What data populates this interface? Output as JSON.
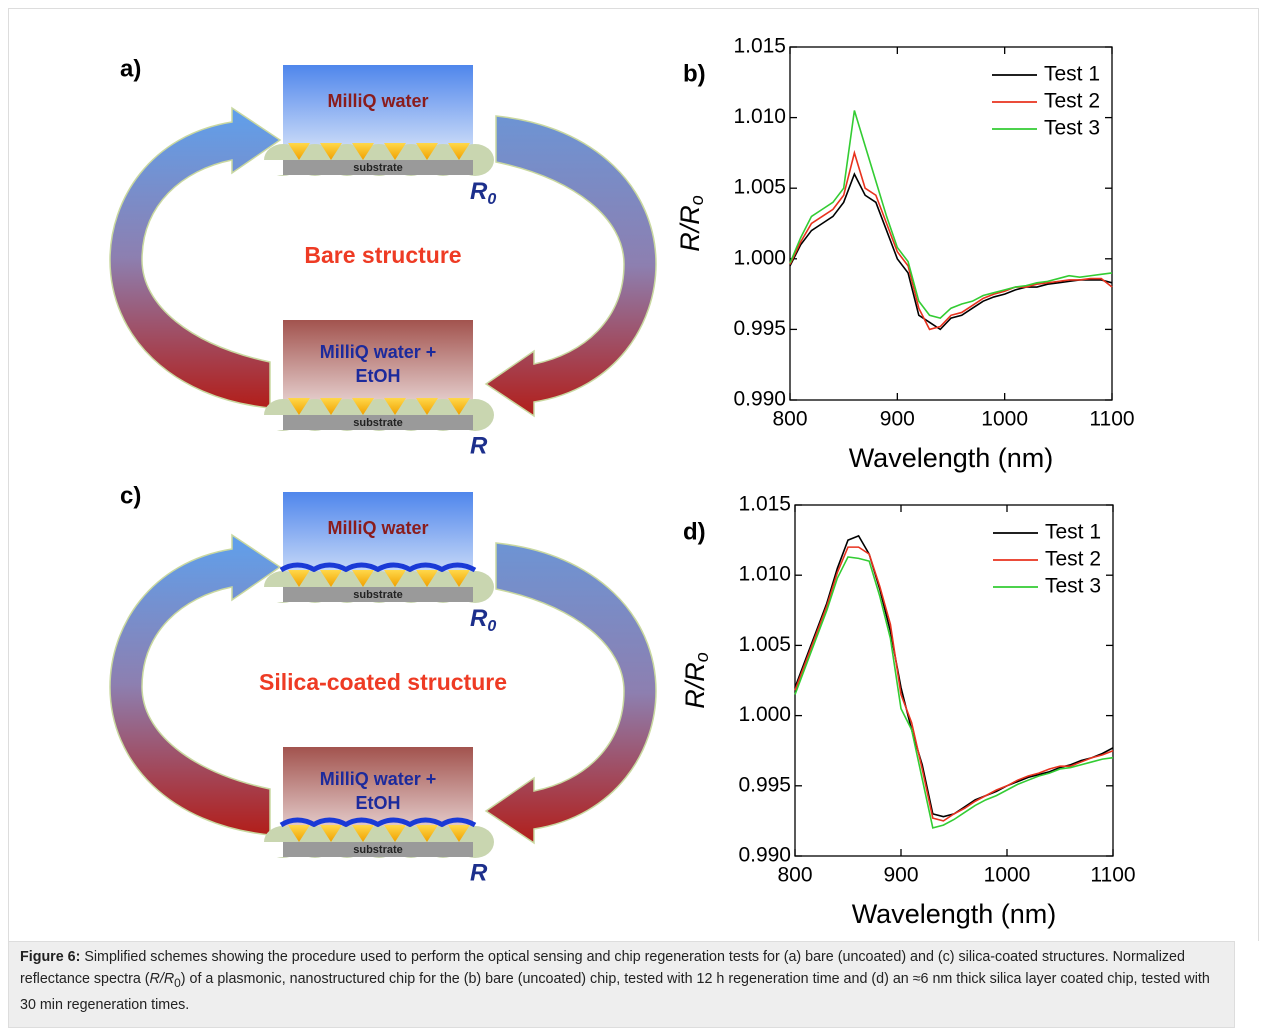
{
  "schemes": [
    {
      "panel_label": "a)",
      "top_box": {
        "text": "MilliQ water",
        "substrate": "substrate"
      },
      "top_symbol": "R",
      "top_symbol_sub": "0",
      "center_text": "Bare structure",
      "bottom_box": {
        "lines": [
          "MilliQ water +",
          "EtOH"
        ],
        "substrate": "substrate"
      },
      "bottom_symbol": "R",
      "silica_layer": false
    },
    {
      "panel_label": "c)",
      "top_box": {
        "text": "MilliQ water",
        "substrate": "substrate"
      },
      "top_symbol": "R",
      "top_symbol_sub": "0",
      "center_text": "Silica-coated structure",
      "bottom_box": {
        "lines": [
          "MilliQ water +",
          "EtOH"
        ],
        "substrate": "substrate"
      },
      "bottom_symbol": "R",
      "silica_layer": true
    }
  ],
  "chart_data": [
    {
      "type": "line",
      "panel_label": "b)",
      "xlabel": "Wavelength (nm)",
      "ylabel": "R/R",
      "ylabel_subscript": "o",
      "legend": "upper right",
      "x": [
        800,
        810,
        820,
        830,
        840,
        850,
        860,
        870,
        880,
        890,
        900,
        910,
        920,
        930,
        940,
        950,
        960,
        970,
        980,
        990,
        1000,
        1010,
        1020,
        1030,
        1040,
        1050,
        1060,
        1070,
        1080,
        1090,
        1100
      ],
      "xlim": [
        800,
        1100
      ],
      "xticks": [
        800,
        900,
        1000,
        1100
      ],
      "ylim": [
        0.99,
        1.015
      ],
      "yticks": [
        {
          "value": 0.99,
          "label": "0.990"
        },
        0.995,
        {
          "value": 1.0,
          "label": "1.000"
        },
        1.005,
        {
          "value": 1.01,
          "label": "1.010"
        },
        1.015
      ],
      "series": [
        {
          "name": "Test 1",
          "color": "#000000",
          "values": [
            0.9995,
            1.001,
            1.002,
            1.0025,
            1.003,
            1.004,
            1.006,
            1.0045,
            1.004,
            1.002,
            1.0,
            0.999,
            0.996,
            0.9955,
            0.995,
            0.9958,
            0.996,
            0.9965,
            0.997,
            0.9973,
            0.9975,
            0.9978,
            0.998,
            0.998,
            0.9982,
            0.9983,
            0.9984,
            0.9985,
            0.9985,
            0.9985,
            0.9983
          ]
        },
        {
          "name": "Test 2",
          "color": "#e8321e",
          "values": [
            0.9996,
            1.0012,
            1.0025,
            1.003,
            1.0035,
            1.0045,
            1.0075,
            1.005,
            1.0045,
            1.0025,
            1.0005,
            0.9995,
            0.9965,
            0.995,
            0.9952,
            0.996,
            0.9962,
            0.9967,
            0.9972,
            0.9975,
            0.9977,
            0.998,
            0.998,
            0.9982,
            0.9983,
            0.9984,
            0.9985,
            0.9985,
            0.9986,
            0.9986,
            0.998
          ]
        },
        {
          "name": "Test 3",
          "color": "#33cc33",
          "values": [
            0.9997,
            1.0015,
            1.003,
            1.0035,
            1.004,
            1.005,
            1.0105,
            1.008,
            1.0055,
            1.003,
            1.0008,
            0.9998,
            0.997,
            0.996,
            0.9958,
            0.9965,
            0.9968,
            0.997,
            0.9974,
            0.9976,
            0.9978,
            0.998,
            0.9981,
            0.9983,
            0.9984,
            0.9986,
            0.9988,
            0.9987,
            0.9988,
            0.9989,
            0.999
          ]
        }
      ]
    },
    {
      "type": "line",
      "panel_label": "d)",
      "xlabel": "Wavelength (nm)",
      "ylabel": "R/R",
      "ylabel_subscript": "o",
      "legend": "upper right",
      "x": [
        800,
        810,
        820,
        830,
        840,
        850,
        860,
        870,
        880,
        890,
        900,
        910,
        920,
        930,
        940,
        950,
        960,
        970,
        980,
        990,
        1000,
        1010,
        1020,
        1030,
        1040,
        1050,
        1060,
        1070,
        1080,
        1090,
        1100
      ],
      "xlim": [
        800,
        1100
      ],
      "xticks": [
        800,
        900,
        1000,
        1100
      ],
      "ylim": [
        0.99,
        1.015
      ],
      "yticks": [
        {
          "value": 0.99,
          "label": "0.990"
        },
        0.995,
        {
          "value": 1.0,
          "label": "1.000"
        },
        1.005,
        {
          "value": 1.01,
          "label": "1.010"
        },
        1.015
      ],
      "series": [
        {
          "name": "Test 1",
          "color": "#000000",
          "values": [
            1.002,
            1.004,
            1.006,
            1.008,
            1.0105,
            1.0125,
            1.0128,
            1.0115,
            1.009,
            1.006,
            1.002,
            0.999,
            0.9965,
            0.993,
            0.9928,
            0.993,
            0.9935,
            0.994,
            0.9943,
            0.9946,
            0.995,
            0.9953,
            0.9956,
            0.9958,
            0.996,
            0.9963,
            0.9965,
            0.9968,
            0.997,
            0.9973,
            0.9977
          ]
        },
        {
          "name": "Test 2",
          "color": "#e8321e",
          "values": [
            1.0018,
            1.0038,
            1.0058,
            1.0078,
            1.0102,
            1.012,
            1.012,
            1.0115,
            1.0092,
            1.0065,
            1.0015,
            0.9995,
            0.9962,
            0.9927,
            0.9925,
            0.993,
            0.9934,
            0.9939,
            0.9943,
            0.9947,
            0.995,
            0.9954,
            0.9957,
            0.9959,
            0.9962,
            0.9964,
            0.9964,
            0.9967,
            0.997,
            0.9972,
            0.9975
          ]
        },
        {
          "name": "Test 3",
          "color": "#33cc33",
          "values": [
            1.0015,
            1.0035,
            1.0055,
            1.0075,
            1.0098,
            1.0113,
            1.0112,
            1.011,
            1.0085,
            1.0055,
            1.0005,
            0.999,
            0.9955,
            0.992,
            0.9922,
            0.9926,
            0.9931,
            0.9936,
            0.994,
            0.9943,
            0.9947,
            0.9951,
            0.9954,
            0.9957,
            0.9959,
            0.9962,
            0.9963,
            0.9965,
            0.9967,
            0.9969,
            0.997
          ]
        }
      ]
    }
  ],
  "caption": {
    "label": "Figure 6:",
    "text_1": " Simplified schemes showing the procedure used to perform the optical sensing and chip regeneration tests for (a) bare (uncoated) and (c) silica-coated structures. Normalized reflectance spectra (",
    "symbol": "R/R",
    "symbol_sub": "0",
    "text_2": ") of a plasmonic, nanostructured chip for the (b) bare (uncoated) chip, tested with 12 h regeneration time and (d) an ≈6 nm thick silica layer coated chip, tested with 30 min regeneration times."
  }
}
